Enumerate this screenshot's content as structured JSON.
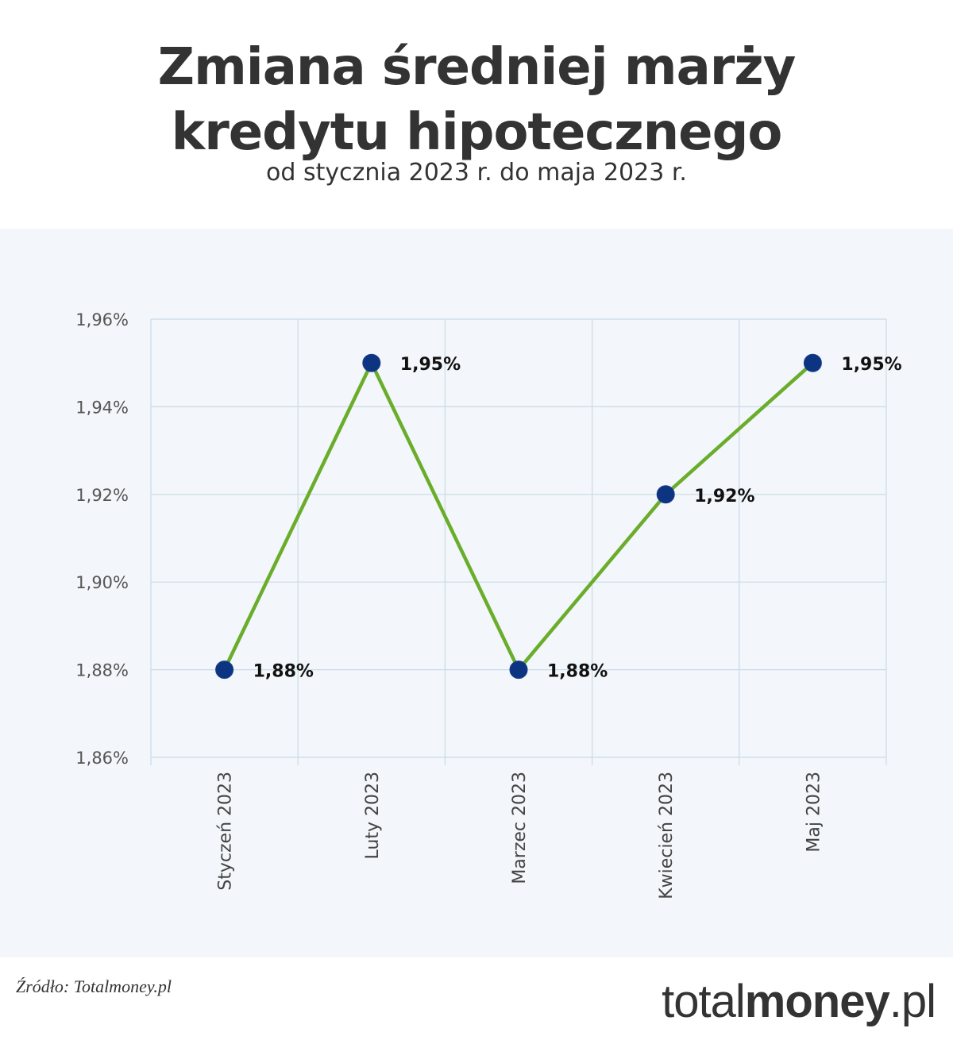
{
  "header": {
    "title_line1": "Zmiana średniej marży",
    "title_line2": "kredytu hipotecznego",
    "subtitle": "od stycznia 2023 r. do maja 2023 r."
  },
  "footer": {
    "source": "Źródło: Totalmoney.pl",
    "logo_light": "total",
    "logo_bold": "money",
    "logo_suffix": ".pl"
  },
  "colors": {
    "line": "#6aad2b",
    "marker": "#0d3480",
    "grid": "#c9dbe8",
    "panel": "#f3f6fa",
    "text": "#333333"
  },
  "chart_data": {
    "type": "line",
    "categories": [
      "Styczeń 2023",
      "Luty 2023",
      "Marzec 2023",
      "Kwiecień 2023",
      "Maj 2023"
    ],
    "series": [
      {
        "values": [
          1.88,
          1.95,
          1.88,
          1.92,
          1.95
        ]
      }
    ],
    "data_labels": [
      "1,88%",
      "1,95%",
      "1,88%",
      "1,92%",
      "1,95%"
    ],
    "y_ticks": [
      1.86,
      1.88,
      1.9,
      1.92,
      1.94,
      1.96
    ],
    "y_tick_labels": [
      "1,86%",
      "1,88%",
      "1,90%",
      "1,92%",
      "1,94%",
      "1,96%"
    ],
    "ylim": [
      1.86,
      1.96
    ],
    "grid": true,
    "legend": false
  }
}
